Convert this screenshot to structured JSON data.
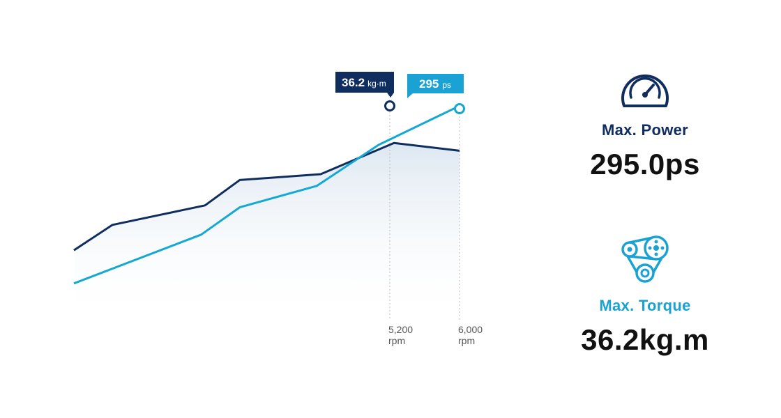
{
  "colors": {
    "power_line": "#14a8d3",
    "torque_line": "#0f2d5f",
    "area_fill": "#dfe8f1",
    "dashed": "#b9b9b9",
    "power_accent": "#1aa2d4",
    "torque_accent": "#0f2d5f"
  },
  "chart_data": {
    "type": "line",
    "series": [
      {
        "name": "torque",
        "color": "#0f2d5f",
        "values": [
          [
            0,
            0.74
          ],
          [
            0.1,
            0.61
          ],
          [
            0.22,
            0.56
          ],
          [
            0.34,
            0.51
          ],
          [
            0.43,
            0.38
          ],
          [
            0.64,
            0.35
          ],
          [
            0.83,
            0.19
          ],
          [
            1.0,
            0.23
          ]
        ]
      },
      {
        "name": "power",
        "color": "#14a8d3",
        "values": [
          [
            0.0,
            0.91
          ],
          [
            0.33,
            0.66
          ],
          [
            0.43,
            0.52
          ],
          [
            0.63,
            0.41
          ],
          [
            0.79,
            0.2
          ],
          [
            1.0,
            0.0
          ]
        ]
      }
    ],
    "markers": [
      {
        "rpm_label": "5,200",
        "unit": "rpm",
        "value": "36.2",
        "value_unit": "kg·m",
        "series": "torque"
      },
      {
        "rpm_label": "6,000",
        "unit": "rpm",
        "value": "295",
        "value_unit": "ps",
        "series": "power"
      }
    ],
    "grid": false
  },
  "power": {
    "label": "Max. Power",
    "value": "295.0ps",
    "icon": "speedometer-icon"
  },
  "torque": {
    "label": "Max. Torque",
    "value": "36.2kg.m",
    "icon": "belt-pulley-icon"
  }
}
